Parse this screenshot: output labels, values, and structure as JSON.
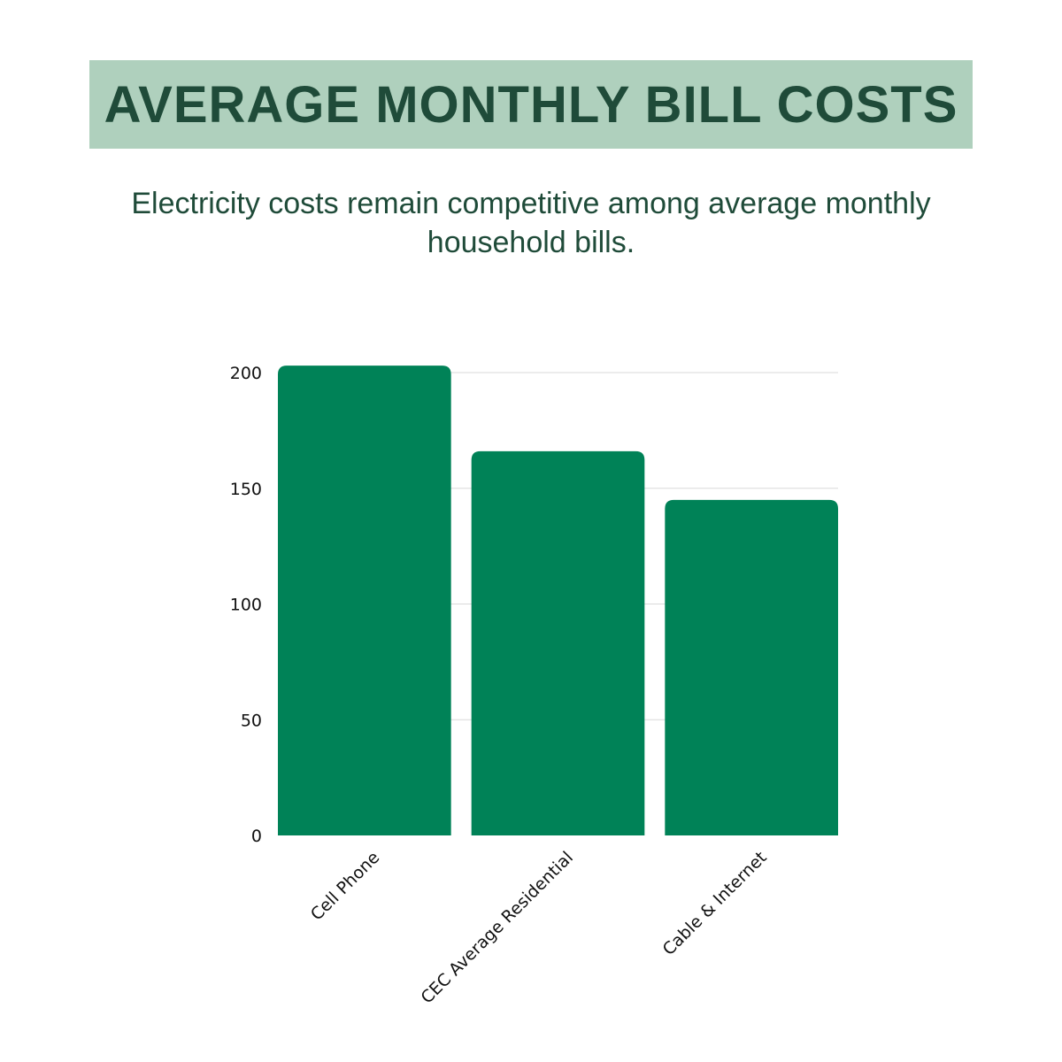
{
  "title": "AVERAGE MONTHLY BILL COSTS",
  "subtitle": "Electricity costs remain competitive among average monthly household bills.",
  "colors": {
    "banner": "#afd0bd",
    "title_text": "#1f4b39",
    "bar": "#008257",
    "grid": "#d9d9d9"
  },
  "chart_data": {
    "type": "bar",
    "categories": [
      "Cell Phone",
      "CEC Average Residential",
      "Cable & Internet"
    ],
    "values": [
      203,
      166,
      145
    ],
    "yticks": [
      "0",
      "50",
      "100",
      "150",
      "200"
    ],
    "ylim": [
      0,
      200
    ],
    "grid": true,
    "xlabel": "",
    "ylabel": ""
  }
}
